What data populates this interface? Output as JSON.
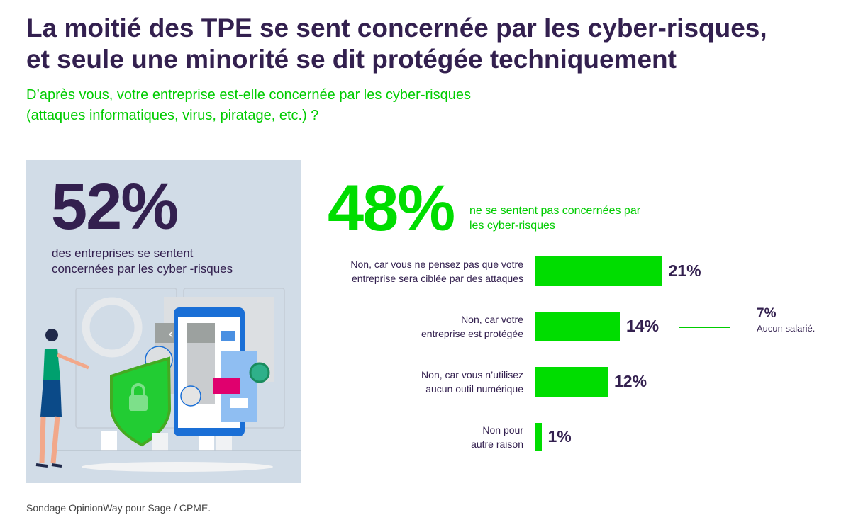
{
  "title_lines": [
    "La moitié des TPE se sent concernée par les cyber-risques,",
    "et seule une minorité se dit protégée techniquement"
  ],
  "subtitle_lines": [
    "D’après vous, votre entreprise est-elle concernée par les cyber-risques",
    "(attaques informatiques, virus, piratage, etc.) ?"
  ],
  "left_panel": {
    "big_value": "52%",
    "desc_lines": [
      "des entreprises se sentent",
      "concernées par les cyber -risques"
    ]
  },
  "right_header": {
    "big_value": "48%",
    "desc_lines": [
      "ne se sentent pas concernées par",
      "les cyber-risques"
    ]
  },
  "colors": {
    "title": "#33204f",
    "accent": "#00dd00",
    "panel": "#d1dce7"
  },
  "chart_data": {
    "type": "bar",
    "orientation": "horizontal",
    "categories": [
      [
        "Non, car vous ne pensez pas que votre",
        "entreprise sera ciblée par des attaques"
      ],
      [
        "Non, car votre",
        "entreprise est protégée"
      ],
      [
        "Non, car vous n’utilisez",
        "aucun outil numérique"
      ],
      [
        "Non pour",
        "autre raison"
      ]
    ],
    "values": [
      21,
      14,
      12,
      1
    ],
    "labels": [
      "21%",
      "14%",
      "12%",
      "1%"
    ],
    "unit": "%",
    "annotation": {
      "value": "7%",
      "text": "Aucun salarié.",
      "refers_to_index": 1
    }
  },
  "source": "Sondage OpinionWay pour Sage / CPME."
}
